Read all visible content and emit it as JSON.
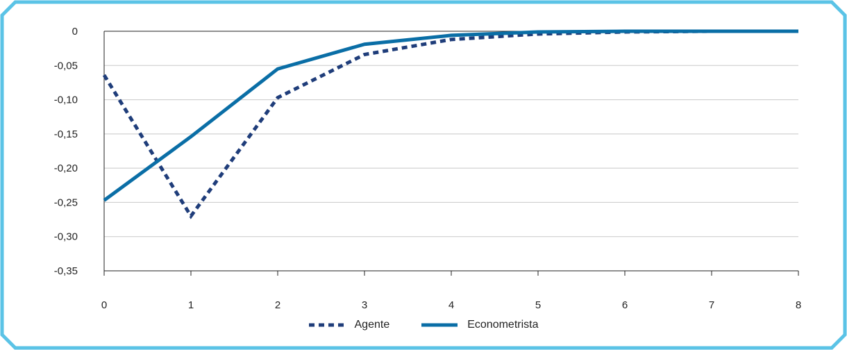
{
  "chart_data": {
    "type": "line",
    "title": "",
    "xlabel": "",
    "ylabel": "",
    "x": [
      0,
      1,
      2,
      3,
      4,
      5,
      6,
      7,
      8
    ],
    "xlim": [
      0,
      8
    ],
    "ylim": [
      -0.35,
      0
    ],
    "x_ticks": [
      "0",
      "1",
      "2",
      "3",
      "4",
      "5",
      "6",
      "7",
      "8"
    ],
    "y_ticks": [
      {
        "value": 0,
        "label": "0"
      },
      {
        "value": -0.05,
        "label": "-0,05"
      },
      {
        "value": -0.1,
        "label": "-0,10"
      },
      {
        "value": -0.15,
        "label": "-0,15"
      },
      {
        "value": -0.2,
        "label": "-0,20"
      },
      {
        "value": -0.25,
        "label": "-0,25"
      },
      {
        "value": -0.3,
        "label": "-0,30"
      },
      {
        "value": -0.35,
        "label": "-0,35"
      }
    ],
    "grid": "horizontal",
    "legend_position": "bottom-center",
    "series": [
      {
        "name": "Agente",
        "style": "dashed",
        "color": "#1f3d7a",
        "values": [
          -0.064,
          -0.27,
          -0.097,
          -0.034,
          -0.012,
          -0.004,
          -0.001,
          0.0,
          0.0
        ]
      },
      {
        "name": "Econometrista",
        "style": "solid",
        "color": "#0a6ea6",
        "values": [
          -0.247,
          -0.154,
          -0.055,
          -0.019,
          -0.006,
          -0.001,
          0.0,
          0.0,
          0.0
        ]
      }
    ]
  },
  "colors": {
    "frame": "#5bc3e6",
    "grid": "#c8c8c8",
    "axis": "#222222"
  }
}
